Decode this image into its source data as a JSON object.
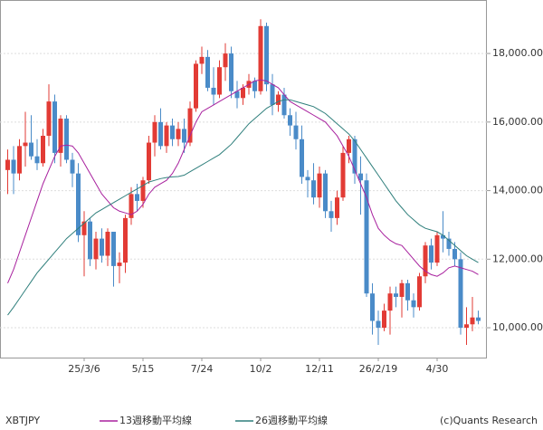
{
  "chart_data": {
    "type": "candlestick",
    "symbol": "XBTJPY",
    "source": "(c)Quants Research",
    "categories": [
      null,
      null,
      null,
      null,
      null,
      null,
      null,
      null,
      null,
      null,
      null,
      null,
      null,
      "25/3/6",
      null,
      null,
      null,
      null,
      null,
      null,
      null,
      null,
      null,
      "5/15",
      null,
      null,
      null,
      null,
      null,
      null,
      null,
      null,
      null,
      "7/24",
      null,
      null,
      null,
      null,
      null,
      null,
      null,
      null,
      null,
      "10/2",
      null,
      null,
      null,
      null,
      null,
      null,
      null,
      null,
      null,
      "12/11",
      null,
      null,
      null,
      null,
      null,
      null,
      null,
      null,
      null,
      "26/2/19",
      null,
      null,
      null,
      null,
      null,
      null,
      null,
      null,
      null,
      "4/30",
      null,
      null,
      null,
      null,
      null,
      null,
      null
    ],
    "open": [
      14600,
      14900,
      14500,
      15300,
      15400,
      15000,
      14800,
      15600,
      16600,
      15100,
      16100,
      14900,
      14500,
      12700,
      13100,
      12000,
      12600,
      12100,
      12800,
      11800,
      11900,
      13200,
      13900,
      13700,
      14300,
      15400,
      16000,
      15300,
      15900,
      15500,
      15800,
      15400,
      16400,
      17700,
      17900,
      17000,
      16800,
      17600,
      18000,
      16900,
      16700,
      17000,
      17200,
      16900,
      18800,
      17100,
      16500,
      16800,
      16200,
      15900,
      15500,
      14400,
      14300,
      13800,
      14500,
      13400,
      13200,
      13800,
      15100,
      15500,
      14500,
      14300,
      11000,
      10200,
      10000,
      10500,
      11000,
      10900,
      11300,
      10800,
      10600,
      11500,
      12400,
      11900,
      12700,
      12600,
      12300,
      12000,
      10000,
      10100,
      10300
    ],
    "high": [
      15200,
      15300,
      15500,
      16300,
      16200,
      15500,
      15800,
      17100,
      16800,
      16200,
      16200,
      15100,
      14800,
      13400,
      13200,
      12800,
      12900,
      12900,
      12800,
      12200,
      13300,
      14100,
      14200,
      14400,
      15600,
      16200,
      16400,
      16000,
      16100,
      16000,
      16100,
      16600,
      17800,
      18200,
      18100,
      17600,
      17800,
      18300,
      18200,
      17200,
      17100,
      17400,
      17300,
      19000,
      18900,
      17400,
      16900,
      17000,
      16400,
      16300,
      15900,
      14600,
      14800,
      14700,
      14600,
      13700,
      14000,
      15300,
      15600,
      15600,
      15000,
      14500,
      11300,
      10500,
      10700,
      11200,
      11200,
      11400,
      11400,
      11000,
      11600,
      12500,
      12600,
      12800,
      13400,
      12800,
      12500,
      12200,
      10600,
      10900,
      10500
    ],
    "low": [
      13900,
      13900,
      14300,
      14700,
      14900,
      14600,
      14700,
      15300,
      14800,
      14700,
      14800,
      14100,
      12500,
      11500,
      11800,
      11700,
      11900,
      11800,
      11200,
      11300,
      11600,
      13000,
      13400,
      13500,
      14200,
      15000,
      15200,
      15100,
      15300,
      15300,
      15100,
      15300,
      16300,
      17400,
      16900,
      16500,
      16700,
      17200,
      16700,
      16400,
      16500,
      16800,
      16700,
      16800,
      16900,
      16200,
      16300,
      16100,
      15600,
      15200,
      14200,
      13800,
      13600,
      13500,
      13200,
      12800,
      13000,
      13700,
      14800,
      14200,
      13300,
      10900,
      9800,
      9500,
      9900,
      9800,
      10600,
      10300,
      10500,
      10300,
      10500,
      11300,
      11700,
      11800,
      12200,
      12100,
      11800,
      9800,
      9500,
      9900,
      10100
    ],
    "close": [
      14900,
      14500,
      15300,
      15400,
      15000,
      14800,
      15600,
      16600,
      15100,
      16100,
      14900,
      14500,
      12700,
      13100,
      12000,
      12600,
      12100,
      12800,
      11800,
      11900,
      13200,
      13900,
      13700,
      14300,
      15400,
      16000,
      15300,
      15900,
      15500,
      15800,
      15400,
      16400,
      17700,
      17900,
      17000,
      16800,
      17600,
      18000,
      16900,
      16700,
      17000,
      17200,
      16900,
      18800,
      17100,
      16500,
      16800,
      16200,
      15900,
      15500,
      14400,
      14300,
      13800,
      14500,
      13400,
      13200,
      13800,
      15100,
      15500,
      14500,
      14300,
      11000,
      10200,
      10000,
      10500,
      11000,
      10900,
      11300,
      10800,
      10600,
      11500,
      12400,
      11900,
      12700,
      12600,
      12300,
      12000,
      10000,
      10100,
      10300,
      10200
    ],
    "up_color": "#e23b35",
    "down_color": "#4a8bc8",
    "series": [
      {
        "name": "13週移動平均線",
        "color": "#a8219e",
        "values": [
          11300,
          11700,
          12200,
          12700,
          13200,
          13700,
          14200,
          14600,
          15000,
          15300,
          15330,
          15300,
          15100,
          14800,
          14500,
          14200,
          13900,
          13700,
          13500,
          13400,
          13350,
          13300,
          13400,
          13600,
          13900,
          14100,
          14200,
          14300,
          14500,
          14800,
          15200,
          15600,
          16000,
          16300,
          16400,
          16500,
          16600,
          16700,
          16800,
          16900,
          17000,
          17100,
          17200,
          17230,
          17200,
          17100,
          17000,
          16800,
          16600,
          16500,
          16400,
          16300,
          16200,
          16100,
          16000,
          15800,
          15600,
          15300,
          15000,
          14600,
          14200,
          13800,
          13300,
          12900,
          12700,
          12550,
          12450,
          12400,
          12200,
          12000,
          11800,
          11650,
          11550,
          11500,
          11600,
          11750,
          11800,
          11750,
          11700,
          11650,
          11550
        ]
      },
      {
        "name": "26週移動平均線",
        "color": "#2f7f7c",
        "values": [
          10370,
          10600,
          10850,
          11100,
          11350,
          11600,
          11800,
          12000,
          12200,
          12400,
          12600,
          12750,
          12900,
          13050,
          13200,
          13350,
          13450,
          13550,
          13650,
          13750,
          13850,
          13950,
          14050,
          14150,
          14250,
          14300,
          14350,
          14380,
          14400,
          14410,
          14450,
          14550,
          14650,
          14750,
          14850,
          14950,
          15050,
          15200,
          15350,
          15550,
          15750,
          15950,
          16100,
          16250,
          16400,
          16500,
          16600,
          16650,
          16650,
          16600,
          16550,
          16500,
          16450,
          16350,
          16250,
          16100,
          15950,
          15800,
          15650,
          15450,
          15200,
          14950,
          14700,
          14450,
          14200,
          13950,
          13700,
          13500,
          13300,
          13150,
          13000,
          12900,
          12850,
          12800,
          12700,
          12550,
          12400,
          12250,
          12100,
          12000,
          11900
        ]
      }
    ],
    "ylim": [
      9130,
      19560
    ],
    "yticks": [
      {
        "value": 10000,
        "label": "10,000.00"
      },
      {
        "value": 12000,
        "label": "12,000.00"
      },
      {
        "value": 14000,
        "label": "14,000.00"
      },
      {
        "value": 16000,
        "label": "16,000.00"
      },
      {
        "value": 18000,
        "label": "18,000.00"
      }
    ],
    "grid": true
  }
}
